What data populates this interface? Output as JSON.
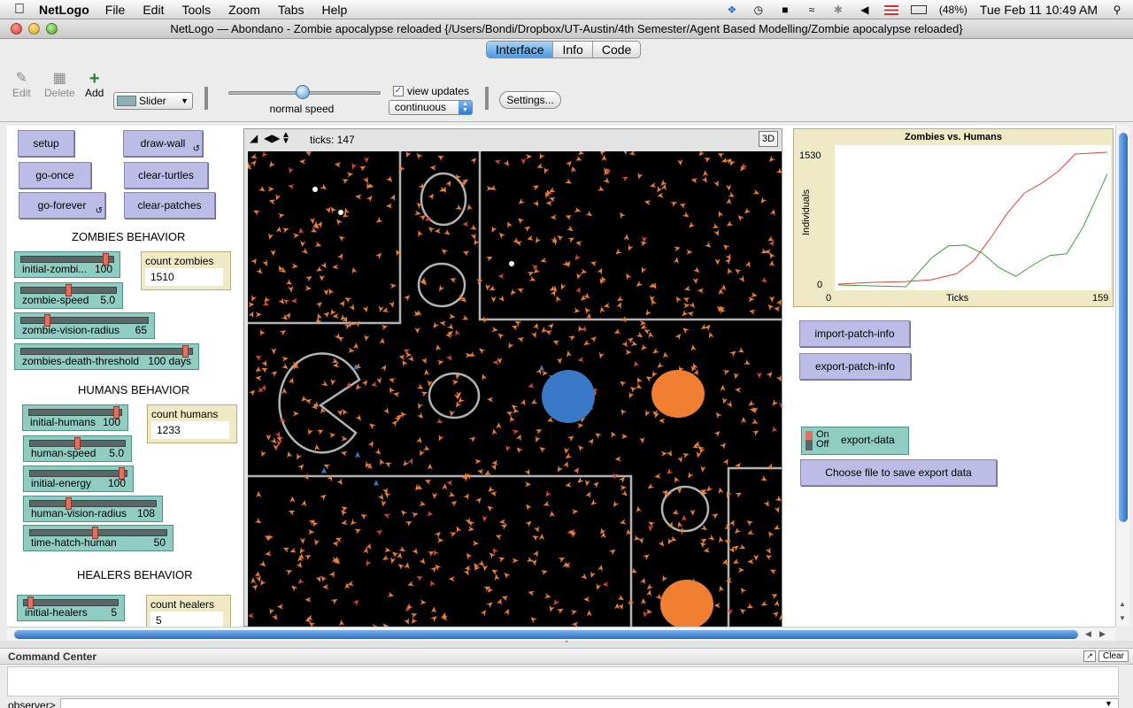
{
  "menubar": {
    "app_name": "NetLogo",
    "menus": [
      "File",
      "Edit",
      "Tools",
      "Zoom",
      "Tabs",
      "Help"
    ],
    "battery": "(48%)",
    "clock": "Tue Feb 11  10:49 AM"
  },
  "window": {
    "title": "NetLogo — Abondano - Zombie apocalypse reloaded {/Users/Bondi/Dropbox/UT-Austin/4th Semester/Agent Based Modelling/Zombie apocalypse reloaded}"
  },
  "tabs": [
    {
      "label": "Interface",
      "active": true
    },
    {
      "label": "Info",
      "active": false
    },
    {
      "label": "Code",
      "active": false
    }
  ],
  "toolbar": {
    "edit_label": "Edit",
    "delete_label": "Delete",
    "add_label": "Add",
    "widget_type": "Slider",
    "speed_label": "normal speed",
    "view_updates_label": "view updates",
    "view_updates_checked": true,
    "update_mode": "continuous",
    "settings_label": "Settings..."
  },
  "buttons": {
    "setup": "setup",
    "draw_wall": "draw-wall",
    "go_once": "go-once",
    "clear_turtles": "clear-turtles",
    "go_forever": "go-forever",
    "clear_patches": "clear-patches",
    "import_patch_info": "import-patch-info",
    "export_patch_info": "export-patch-info",
    "choose_file": "Choose file to save export data"
  },
  "sections": {
    "zombies": "ZOMBIES BEHAVIOR",
    "humans": "HUMANS BEHAVIOR",
    "healers": "HEALERS BEHAVIOR"
  },
  "sliders": {
    "initial_zombies": {
      "label": "initial-zombi...",
      "value": "100",
      "fraction": 0.95
    },
    "zombie_speed": {
      "label": "zombie-speed",
      "value": "5.0",
      "fraction": 0.5
    },
    "zombie_vision_radius": {
      "label": "zombie-vision-radius",
      "value": "65",
      "fraction": 0.2
    },
    "zombies_death_threshold": {
      "label": "zombies-death-threshold",
      "value": "100 days",
      "fraction": 0.98
    },
    "initial_humans": {
      "label": "initial-humans",
      "value": "100",
      "fraction": 0.98
    },
    "human_speed": {
      "label": "human-speed",
      "value": "5.0",
      "fraction": 0.5
    },
    "initial_energy": {
      "label": "initial-energy",
      "value": "100",
      "fraction": 0.98
    },
    "human_vision_radius": {
      "label": "human-vision-radius",
      "value": "108",
      "fraction": 0.3
    },
    "time_hatch_human": {
      "label": "time-hatch-human",
      "value": "50",
      "fraction": 0.48
    },
    "initial_healers": {
      "label": "initial-healers",
      "value": "5",
      "fraction": 0.05
    }
  },
  "monitors": {
    "count_zombies": {
      "label": "count zombies",
      "value": "1510"
    },
    "count_humans": {
      "label": "count humans",
      "value": "1233"
    },
    "count_healers": {
      "label": "count healers",
      "value": "5"
    }
  },
  "world": {
    "ticks_label": "ticks: 147",
    "three_d_label": "3D",
    "background": "#000000",
    "zombie_color": "#f07f32",
    "human_color": "#3a78c8",
    "wall_color": "#b3b3b3"
  },
  "switch": {
    "on_label": "On",
    "off_label": "Off",
    "label": "export-data",
    "state": "off"
  },
  "chart_data": {
    "type": "line",
    "title": "Zombies vs. Humans",
    "xlabel": "Ticks",
    "ylabel": "Individuals",
    "xlim": [
      0,
      159
    ],
    "ylim": [
      0,
      1530
    ],
    "x_tick_labels": [
      "0",
      "159"
    ],
    "y_tick_labels": [
      "0",
      "1530"
    ],
    "series": [
      {
        "color": "#d9463a",
        "x": [
          0,
          20,
          40,
          55,
          70,
          80,
          90,
          100,
          110,
          120,
          130,
          140,
          150,
          159
        ],
        "y": [
          30,
          50,
          60,
          80,
          150,
          300,
          560,
          850,
          1080,
          1190,
          1330,
          1530,
          1540,
          1550
        ]
      },
      {
        "color": "#3f9b3f",
        "x": [
          0,
          20,
          40,
          55,
          65,
          75,
          85,
          95,
          105,
          115,
          125,
          135,
          145,
          159
        ],
        "y": [
          20,
          10,
          0,
          330,
          470,
          480,
          390,
          220,
          120,
          250,
          360,
          380,
          700,
          1300
        ]
      }
    ]
  },
  "command_center": {
    "title": "Command Center",
    "clear_label": "Clear",
    "prompt": "observer>"
  }
}
